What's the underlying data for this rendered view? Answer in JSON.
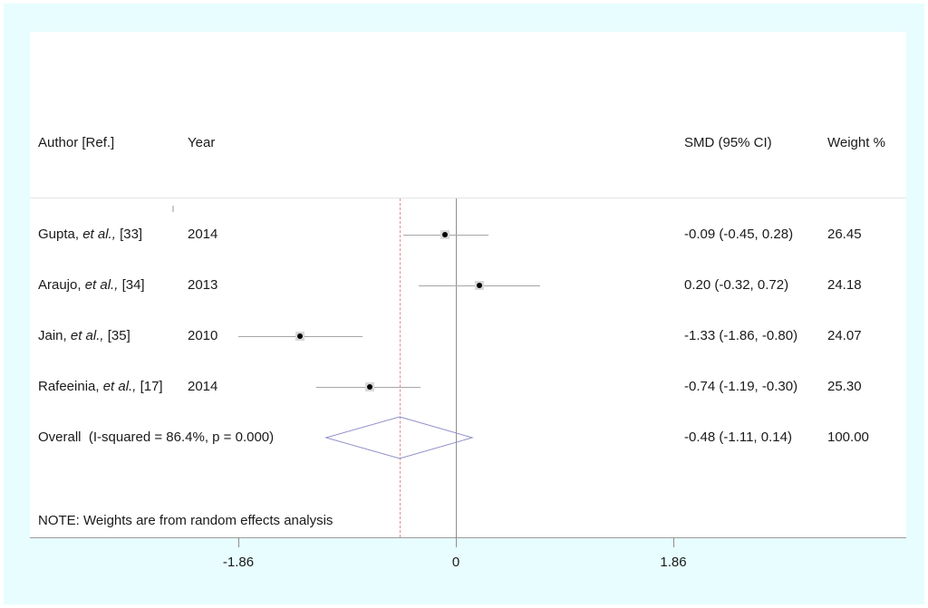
{
  "header": {
    "author": "Author [Ref.]",
    "year": "Year",
    "smd": "SMD (95% CI)",
    "weight": "Weight %"
  },
  "note": "NOTE: Weights are from random effects analysis",
  "colors": {
    "background": "#e7fdff",
    "panel": "#ffffff",
    "text": "#1a1a1a",
    "axis_line": "#9b9b9b",
    "separator_line": "#e4e4e4",
    "zero_line": "#8f8f8f",
    "ci_line": "#a6a6a6",
    "marker": "#000000",
    "weight_box": "#d9d9d9",
    "dashed_line": "#e08f8f",
    "diamond_outline": "#8f8fc8"
  },
  "chart_data": {
    "type": "forest",
    "effect_measure": "SMD (95% CI)",
    "x_ticks": [
      {
        "value": -1.86,
        "label": "-1.86"
      },
      {
        "value": 0,
        "label": "0"
      },
      {
        "value": 1.86,
        "label": "1.86"
      }
    ],
    "xlim": [
      -3.4,
      3.85
    ],
    "studies": [
      {
        "author": "Gupta,",
        "etal": "et al.,",
        "ref": "[33]",
        "year": "2014",
        "est": -0.09,
        "ci_low": -0.45,
        "ci_high": 0.28,
        "smd_text": "-0.09 (-0.45, 0.28)",
        "weight_pct": "26.45"
      },
      {
        "author": "Araujo,",
        "etal": "et al.,",
        "ref": "[34]",
        "year": "2013",
        "est": 0.2,
        "ci_low": -0.32,
        "ci_high": 0.72,
        "smd_text": "0.20 (-0.32, 0.72)",
        "weight_pct": "24.18"
      },
      {
        "author": "Jain,",
        "etal": "et al.,",
        "ref": "[35]",
        "year": "2010",
        "est": -1.33,
        "ci_low": -1.86,
        "ci_high": -0.8,
        "smd_text": "-1.33 (-1.86, -0.80)",
        "weight_pct": "24.07"
      },
      {
        "author": "Rafeeinia,",
        "etal": "et al.,",
        "ref": "[17]",
        "year": "2014",
        "est": -0.74,
        "ci_low": -1.19,
        "ci_high": -0.3,
        "smd_text": "-0.74 (-1.19, -0.30)",
        "weight_pct": "25.30"
      }
    ],
    "overall": {
      "label": "Overall  (I-squared = 86.4%, p = 0.000)",
      "est": -0.48,
      "ci_low": -1.11,
      "ci_high": 0.14,
      "smd_text": "-0.48 (-1.11, 0.14)",
      "weight_pct": "100.00"
    }
  }
}
